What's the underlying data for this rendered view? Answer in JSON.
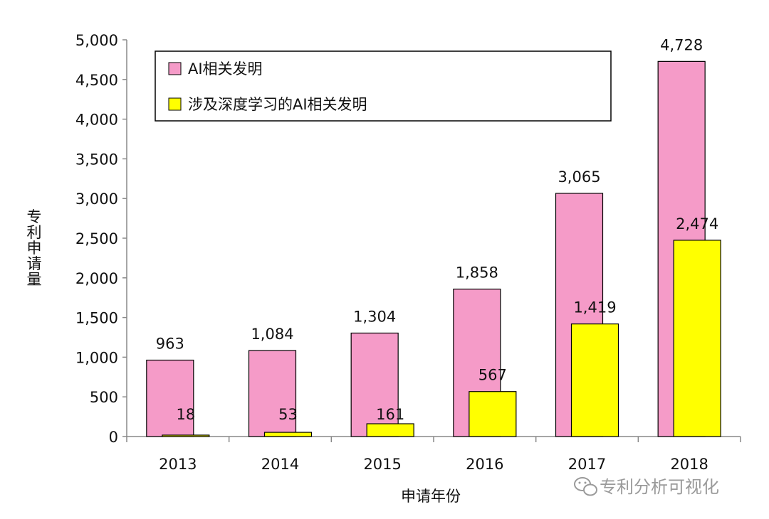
{
  "chart_data": {
    "type": "bar",
    "categories": [
      "2013",
      "2014",
      "2015",
      "2016",
      "2017",
      "2018"
    ],
    "series": [
      {
        "name": "AI相关发明",
        "values": [
          963,
          1084,
          1304,
          1858,
          3065,
          4728
        ],
        "color": "#f59bc8"
      },
      {
        "name": "涉及深度学习的AI相关发明",
        "values": [
          18,
          53,
          161,
          567,
          1419,
          2474
        ],
        "color": "#ffff00"
      }
    ],
    "data_labels": {
      "series0": [
        "963",
        "1,084",
        "1,304",
        "1,858",
        "3,065",
        "4,728"
      ],
      "series1": [
        "18",
        "53",
        "161",
        "567",
        "1,419",
        "2,474"
      ]
    },
    "ylim": [
      0,
      5000
    ],
    "yticks": [
      0,
      500,
      1000,
      1500,
      2000,
      2500,
      3000,
      3500,
      4000,
      4500,
      5000
    ],
    "ytick_labels": [
      "0",
      "500",
      "1,000",
      "1,500",
      "2,000",
      "2,500",
      "3,000",
      "3,500",
      "4,000",
      "4,500",
      "5,000"
    ],
    "xlabel": "申请年份",
    "ylabel": "专利申请量",
    "legend_position": "top",
    "grid": false
  },
  "watermark": {
    "icon": "wechat-icon",
    "text": "专利分析可视化"
  }
}
